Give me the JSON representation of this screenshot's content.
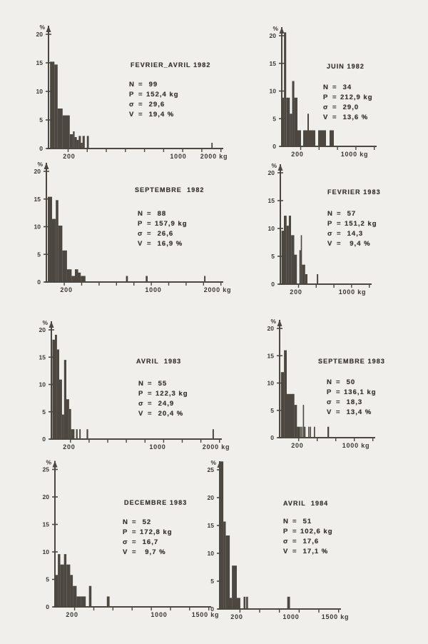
{
  "page": {
    "background": "#f0efeb",
    "ink": "#4c4741",
    "text_ink": "#3b3733"
  },
  "chart_data": [
    {
      "type": "bar",
      "title": "FEVRIER_AVRIL 1982",
      "ylabel": "%",
      "xlabel_unit": "kg",
      "ylim": [
        0,
        20
      ],
      "yticks": [
        0,
        5,
        10,
        15,
        20
      ],
      "xticks": [
        {
          "kg": 200,
          "label": "200"
        },
        {
          "kg": 1000,
          "label": "1000"
        },
        {
          "kg": 2000,
          "label": "2000 kg"
        }
      ],
      "axis_anchors": [
        [
          130,
          0
        ],
        [
          200,
          0.122
        ],
        [
          1000,
          0.768
        ],
        [
          2000,
          0.979
        ]
      ],
      "bars": [
        [
          135,
          150,
          15.2
        ],
        [
          150,
          161,
          14.7
        ],
        [
          161,
          178,
          7.0
        ],
        [
          178,
          205,
          5.8
        ],
        [
          205,
          228,
          2.5
        ],
        [
          228,
          240,
          3.0
        ],
        [
          240,
          256,
          2.0
        ],
        [
          256,
          270,
          1.5
        ],
        [
          270,
          286,
          2.2
        ],
        [
          286,
          298,
          1.0
        ],
        [
          298,
          314,
          2.2
        ],
        [
          330,
          344,
          2.2
        ],
        [
          1925,
          1960,
          1.0
        ]
      ],
      "stats": [
        [
          "N",
          " 99"
        ],
        [
          "P",
          "152,4 kg"
        ],
        [
          "σ",
          " 29,6"
        ],
        [
          "V",
          " 19,4 %"
        ]
      ]
    },
    {
      "type": "bar",
      "title": "JUIN 1982",
      "ylabel": "%",
      "xlabel_unit": "kg",
      "ylim": [
        0,
        20
      ],
      "yticks": [
        0,
        5,
        10,
        15,
        20
      ],
      "xticks": [
        {
          "kg": 200,
          "label": "200"
        },
        {
          "kg": 1000,
          "label": "1000 kg"
        }
      ],
      "axis_anchors": [
        [
          130,
          0
        ],
        [
          200,
          0.176
        ],
        [
          1000,
          0.816
        ],
        [
          1180,
          1.0
        ]
      ],
      "bars": [
        [
          130,
          140,
          8.8
        ],
        [
          140,
          150,
          20.6
        ],
        [
          150,
          166,
          8.8
        ],
        [
          166,
          176,
          5.9
        ],
        [
          176,
          186,
          11.8
        ],
        [
          186,
          200,
          8.8
        ],
        [
          200,
          250,
          2.9
        ],
        [
          280,
          340,
          2.9
        ],
        [
          340,
          360,
          5.9
        ],
        [
          360,
          450,
          2.9
        ],
        [
          490,
          600,
          2.9
        ],
        [
          650,
          710,
          2.9
        ]
      ],
      "stats": [
        [
          "N",
          " 34"
        ],
        [
          "P",
          "212,9 kg"
        ],
        [
          "σ",
          " 29,0"
        ],
        [
          "V",
          " 13,6 %"
        ]
      ]
    },
    {
      "type": "bar",
      "title": "SEPTEMBRE  1982",
      "ylabel": "%",
      "xlabel_unit": "kg",
      "ylim": [
        0,
        20
      ],
      "yticks": [
        0,
        5,
        10,
        15,
        20
      ],
      "xticks": [
        {
          "kg": 200,
          "label": "200"
        },
        {
          "kg": 1000,
          "label": "1000"
        },
        {
          "kg": 2000,
          "label": "2000 kg"
        }
      ],
      "axis_anchors": [
        [
          130,
          0
        ],
        [
          200,
          0.117
        ],
        [
          1000,
          0.625
        ],
        [
          2000,
          1.0
        ]
      ],
      "bars": [
        [
          135,
          150,
          15.4
        ],
        [
          150,
          163,
          11.4
        ],
        [
          163,
          172,
          14.8
        ],
        [
          172,
          186,
          10.2
        ],
        [
          186,
          205,
          5.7
        ],
        [
          205,
          248,
          2.3
        ],
        [
          248,
          278,
          1.1
        ],
        [
          278,
          308,
          2.3
        ],
        [
          308,
          332,
          1.7
        ],
        [
          332,
          375,
          1.1
        ],
        [
          748,
          766,
          1.1
        ],
        [
          930,
          948,
          1.1
        ],
        [
          1790,
          1812,
          1.1
        ]
      ],
      "stats": [
        [
          "N",
          " 88"
        ],
        [
          "P",
          "157,9 kg"
        ],
        [
          "σ",
          " 26,6"
        ],
        [
          "V",
          " 16,9 %"
        ]
      ]
    },
    {
      "type": "bar",
      "title": "FEVRIER 1983",
      "ylabel": "%",
      "xlabel_unit": "kg",
      "ylim": [
        0,
        20
      ],
      "yticks": [
        0,
        5,
        10,
        15,
        20
      ],
      "xticks": [
        {
          "kg": 200,
          "label": "200"
        },
        {
          "kg": 1000,
          "label": "1000 kg"
        }
      ],
      "axis_anchors": [
        [
          130,
          0
        ],
        [
          200,
          0.183
        ],
        [
          1000,
          0.842
        ],
        [
          1150,
          1.0
        ]
      ],
      "bars": [
        [
          135,
          146,
          9.6
        ],
        [
          146,
          158,
          12.3
        ],
        [
          158,
          168,
          10.5
        ],
        [
          168,
          178,
          12.3
        ],
        [
          178,
          192,
          8.8
        ],
        [
          192,
          212,
          5.3
        ],
        [
          248,
          268,
          6.1
        ],
        [
          268,
          284,
          8.8
        ],
        [
          284,
          330,
          3.5
        ],
        [
          330,
          362,
          1.8
        ],
        [
          495,
          515,
          1.8
        ]
      ],
      "stats": [
        [
          "N",
          " 57"
        ],
        [
          "P",
          "151,2 kg"
        ],
        [
          "σ",
          " 14,3"
        ],
        [
          "V",
          "  9,4 %"
        ]
      ]
    },
    {
      "type": "bar",
      "title": "AVRIL  1983",
      "ylabel": "%",
      "xlabel_unit": "kg",
      "ylim": [
        0,
        20
      ],
      "yticks": [
        0,
        5,
        10,
        15,
        20
      ],
      "xticks": [
        {
          "kg": 200,
          "label": "200"
        },
        {
          "kg": 1000,
          "label": "1000"
        },
        {
          "kg": 2000,
          "label": "2000 kg"
        }
      ],
      "axis_anchors": [
        [
          130,
          0
        ],
        [
          200,
          0.108
        ],
        [
          1000,
          0.645
        ],
        [
          2000,
          1.0
        ]
      ],
      "bars": [
        [
          134,
          144,
          18.2
        ],
        [
          144,
          152,
          19.1
        ],
        [
          152,
          161,
          16.4
        ],
        [
          161,
          172,
          10.9
        ],
        [
          172,
          180,
          4.5
        ],
        [
          180,
          189,
          14.5
        ],
        [
          189,
          200,
          7.3
        ],
        [
          200,
          218,
          5.5
        ],
        [
          218,
          248,
          1.8
        ],
        [
          262,
          276,
          1.8
        ],
        [
          292,
          304,
          1.8
        ],
        [
          358,
          372,
          1.8
        ],
        [
          1938,
          1962,
          1.8
        ]
      ],
      "stats": [
        [
          "N",
          " 55"
        ],
        [
          "P",
          "122,3 kg"
        ],
        [
          "σ",
          " 24,9"
        ],
        [
          "V",
          " 20,4 %"
        ]
      ]
    },
    {
      "type": "bar",
      "title": "SEPTEMBRE 1983",
      "ylabel": "%",
      "xlabel_unit": "kg",
      "ylim": [
        0,
        20
      ],
      "yticks": [
        0,
        5,
        10,
        15,
        20
      ],
      "xticks": [
        {
          "kg": 200,
          "label": "200"
        },
        {
          "kg": 1000,
          "label": "1000 kg"
        }
      ],
      "axis_anchors": [
        [
          130,
          0
        ],
        [
          200,
          0.198
        ],
        [
          1000,
          0.849
        ],
        [
          1180,
          1.0
        ]
      ],
      "bars": [
        [
          135,
          147,
          12.0
        ],
        [
          147,
          158,
          16.0
        ],
        [
          158,
          188,
          8.0
        ],
        [
          188,
          198,
          6.0
        ],
        [
          198,
          230,
          2.0
        ],
        [
          232,
          244,
          2.0
        ],
        [
          252,
          262,
          2.0
        ],
        [
          275,
          290,
          6.0
        ],
        [
          290,
          310,
          2.0
        ],
        [
          348,
          362,
          2.0
        ],
        [
          370,
          384,
          2.0
        ],
        [
          425,
          442,
          2.0
        ],
        [
          610,
          632,
          2.0
        ]
      ],
      "stats": [
        [
          "N",
          " 50"
        ],
        [
          "P",
          "136,1 kg"
        ],
        [
          "σ",
          " 18,3"
        ],
        [
          "V",
          " 13,4 %"
        ]
      ]
    },
    {
      "type": "bar",
      "title": "DECEMBRE 1983",
      "ylabel": "%",
      "xlabel_unit": "kg",
      "ylim": [
        0,
        25
      ],
      "yticks": [
        0,
        5,
        10,
        15,
        20,
        25
      ],
      "xticks": [
        {
          "kg": 200,
          "label": "200"
        },
        {
          "kg": 1000,
          "label": "1000"
        },
        {
          "kg": 1500,
          "label": "1500 kg"
        }
      ],
      "axis_anchors": [
        [
          130,
          0
        ],
        [
          200,
          0.114
        ],
        [
          1000,
          0.692
        ],
        [
          1500,
          1.0
        ]
      ],
      "bars": [
        [
          130,
          142,
          5.8
        ],
        [
          142,
          152,
          9.6
        ],
        [
          152,
          167,
          7.7
        ],
        [
          167,
          177,
          9.6
        ],
        [
          177,
          192,
          7.7
        ],
        [
          192,
          207,
          5.8
        ],
        [
          207,
          242,
          3.8
        ],
        [
          242,
          280,
          1.9
        ],
        [
          280,
          326,
          1.9
        ],
        [
          355,
          378,
          3.8
        ],
        [
          520,
          545,
          1.9
        ]
      ],
      "stats": [
        [
          "N",
          " 52"
        ],
        [
          "P",
          "172,8 kg"
        ],
        [
          "σ",
          " 16,7"
        ],
        [
          "V",
          "  9,7 %"
        ]
      ]
    },
    {
      "type": "bar",
      "title": "AVRIL  1984",
      "ylabel": "%",
      "xlabel_unit": "kg",
      "ylim": [
        0,
        25
      ],
      "yticks": [
        0,
        5,
        10,
        15,
        20,
        25
      ],
      "xticks": [
        {
          "kg": 200,
          "label": "200"
        },
        {
          "kg": 1000,
          "label": "1000"
        },
        {
          "kg": 1500,
          "label": "1500 kg"
        }
      ],
      "axis_anchors": [
        [
          130,
          0
        ],
        [
          200,
          0.148
        ],
        [
          1000,
          0.617
        ],
        [
          1500,
          1.0
        ]
      ],
      "bars": [
        [
          131,
          145,
          26.5
        ],
        [
          145,
          155,
          15.7
        ],
        [
          155,
          171,
          13.2
        ],
        [
          171,
          180,
          2.0
        ],
        [
          180,
          200,
          7.8
        ],
        [
          200,
          252,
          2.0
        ],
        [
          300,
          328,
          2.2
        ],
        [
          338,
          365,
          2.2
        ],
        [
          945,
          985,
          2.2
        ]
      ],
      "stats": [
        [
          "N",
          " 51"
        ],
        [
          "P",
          "102,6 kg"
        ],
        [
          "σ",
          " 17,6"
        ],
        [
          "V",
          " 17,1 %"
        ]
      ]
    }
  ]
}
